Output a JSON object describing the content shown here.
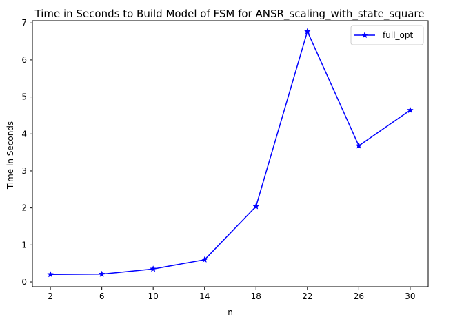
{
  "chart_data": {
    "type": "line",
    "title": "Time in Seconds to Build Model of FSM for ANSR_scaling_with_state_square",
    "xlabel": "n",
    "ylabel": "Time in Seconds",
    "x": [
      2,
      6,
      10,
      14,
      18,
      22,
      26,
      30
    ],
    "x_tick_labels": [
      "2",
      "6",
      "10",
      "14",
      "18",
      "22",
      "26",
      "30"
    ],
    "y_ticks": [
      0,
      1,
      2,
      3,
      4,
      5,
      6,
      7
    ],
    "y_tick_labels": [
      "0",
      "1",
      "2",
      "3",
      "4",
      "5",
      "6",
      "7"
    ],
    "xlim": [
      0.6,
      31.4
    ],
    "ylim": [
      -0.13,
      7.06
    ],
    "grid": false,
    "legend_position": "top-right",
    "series": [
      {
        "name": "full_opt",
        "values": [
          0.2,
          0.21,
          0.35,
          0.6,
          2.04,
          6.77,
          3.68,
          4.64
        ],
        "color": "#0000ff",
        "marker": "star"
      }
    ]
  }
}
